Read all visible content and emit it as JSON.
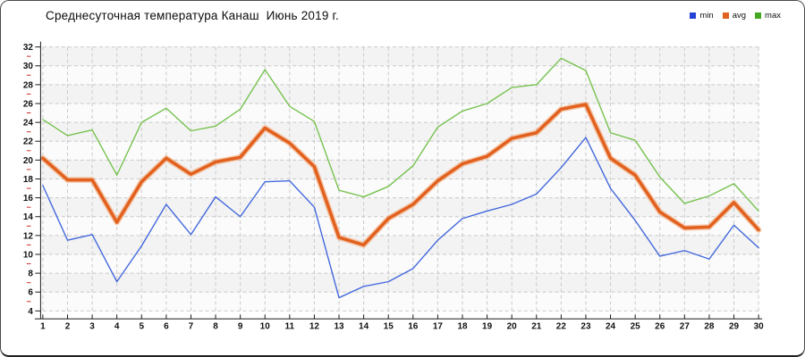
{
  "window": {
    "title": "Среднесуточная температура Канаш  Июнь 2019 г."
  },
  "legend": [
    {
      "label": "min",
      "color": "#2443d6"
    },
    {
      "label": "avg",
      "color": "#e2611f"
    },
    {
      "label": "max",
      "color": "#43a81f"
    }
  ],
  "axis_colors": {
    "major_tick": "#1a1a1a",
    "minor_tick": "#cc2a2a",
    "line": "#1a1a1a",
    "grid": "#c9c9c9"
  },
  "plot_bands": {
    "even": "#f3f3f3",
    "odd": "#fbfbfb"
  },
  "chart_data": {
    "type": "line",
    "title": "Среднесуточная температура Канаш  Июнь 2019 г.",
    "xlabel": "",
    "ylabel": "",
    "ylim": [
      4,
      32
    ],
    "y_ticks": [
      4,
      6,
      8,
      10,
      12,
      14,
      16,
      18,
      20,
      22,
      24,
      26,
      28,
      30,
      32
    ],
    "x": [
      1,
      2,
      3,
      4,
      5,
      6,
      7,
      8,
      9,
      10,
      11,
      12,
      13,
      14,
      15,
      16,
      17,
      18,
      19,
      20,
      21,
      22,
      23,
      24,
      25,
      26,
      27,
      28,
      29,
      30
    ],
    "grid": "dashed",
    "legend_position": "top-right",
    "series": [
      {
        "name": "min",
        "color": "#4368dd",
        "width": 1.4,
        "values": [
          17.3,
          11.5,
          12.1,
          7.1,
          10.9,
          15.3,
          12.1,
          16.1,
          14.0,
          17.7,
          17.8,
          15.0,
          5.4,
          6.6,
          7.1,
          8.5,
          11.5,
          13.8,
          14.6,
          15.3,
          16.4,
          19.2,
          22.4,
          17.0,
          13.6,
          9.8,
          10.4,
          9.5,
          13.1,
          10.7
        ]
      },
      {
        "name": "avg",
        "color": "#e2611f",
        "halo_color": "#f3a672",
        "width": 3.6,
        "values": [
          20.2,
          17.9,
          17.9,
          13.4,
          17.7,
          20.2,
          18.5,
          19.8,
          20.3,
          23.4,
          21.8,
          19.3,
          11.8,
          11.0,
          13.8,
          15.3,
          17.8,
          19.6,
          20.4,
          22.3,
          22.9,
          25.4,
          25.9,
          20.2,
          18.4,
          14.5,
          12.8,
          12.9,
          15.5,
          12.6
        ]
      },
      {
        "name": "max",
        "color": "#76c24e",
        "width": 1.4,
        "values": [
          24.3,
          22.6,
          23.2,
          18.4,
          24.0,
          25.5,
          23.1,
          23.6,
          25.4,
          29.6,
          25.7,
          24.1,
          16.8,
          16.1,
          17.2,
          19.4,
          23.5,
          25.2,
          26.0,
          27.7,
          28.0,
          30.8,
          29.5,
          22.9,
          22.1,
          18.2,
          15.4,
          16.2,
          17.5,
          14.6
        ]
      }
    ]
  }
}
